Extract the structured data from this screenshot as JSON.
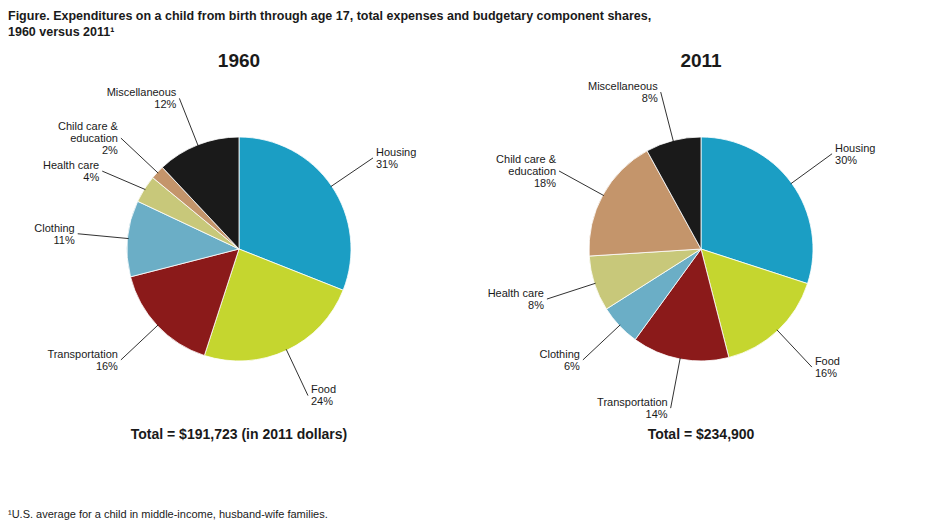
{
  "title": "Figure. Expenditures on a child from birth through age 17, total expenses and budgetary component shares,\n1960 versus 2011¹",
  "footnote": "¹U.S. average for a child in middle-income, husband-wife families.",
  "chart_data": [
    {
      "type": "pie",
      "title": "1960",
      "annotations": [
        "Total = $191,723 (in 2011 dollars)"
      ],
      "categories": [
        "Housing",
        "Food",
        "Transportation",
        "Clothing",
        "Health care",
        "Child care &\neducation",
        "Miscellaneous"
      ],
      "values": [
        31,
        24,
        16,
        11,
        4,
        2,
        12
      ],
      "value_labels": [
        "31%",
        "24%",
        "16%",
        "11%",
        "4%",
        "2%",
        "12%"
      ],
      "colors": [
        "#1B9EC4",
        "#C5D62F",
        "#8B1A1A",
        "#6BAEC6",
        "#C8C87A",
        "#C4956B",
        "#1A1A1A"
      ],
      "data_labels": true
    },
    {
      "type": "pie",
      "title": "2011",
      "annotations": [
        "Total = $234,900"
      ],
      "categories": [
        "Housing",
        "Food",
        "Transportation",
        "Clothing",
        "Health care",
        "Child care &\neducation",
        "Miscellaneous"
      ],
      "values": [
        30,
        16,
        14,
        6,
        8,
        18,
        8
      ],
      "value_labels": [
        "30%",
        "16%",
        "14%",
        "6%",
        "8%",
        "18%",
        "8%"
      ],
      "colors": [
        "#1B9EC4",
        "#C5D62F",
        "#8B1A1A",
        "#6BAEC6",
        "#C8C87A",
        "#C4956B",
        "#1A1A1A"
      ],
      "data_labels": true
    }
  ]
}
